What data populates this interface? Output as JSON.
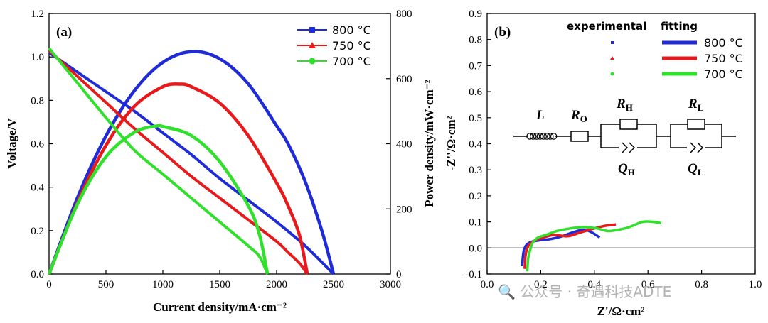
{
  "chart_data": [
    {
      "type": "line",
      "panel_label": "(a)",
      "xlabel": "Current density/mA·cm⁻²",
      "ylabel": "Voltage/V",
      "y2label": "Power density/mW·cm⁻²",
      "xlim": [
        0,
        3000
      ],
      "ylim": [
        0,
        1.2
      ],
      "y2lim": [
        0,
        800
      ],
      "x_ticks": [
        "0",
        "500",
        "1000",
        "1500",
        "2000",
        "2500",
        "3000"
      ],
      "y_ticks": [
        "0.0",
        "0.2",
        "0.4",
        "0.6",
        "0.8",
        "1.0",
        "1.2"
      ],
      "y2_ticks": [
        "0",
        "200",
        "400",
        "600",
        "800"
      ],
      "legend_position": "top-right",
      "legend": [
        "800 °C",
        "750 °C",
        "700 °C"
      ],
      "series": [
        {
          "name": "800 °C",
          "color": "#1f2bd6",
          "marker": "square",
          "voltage": {
            "x": [
              0,
              250,
              500,
              750,
              1000,
              1250,
              1500,
              1750,
              2000,
              2250,
              2500
            ],
            "y": [
              1.02,
              0.93,
              0.84,
              0.75,
              0.65,
              0.55,
              0.44,
              0.34,
              0.24,
              0.13,
              0.0
            ]
          },
          "power": {
            "x": [
              0,
              250,
              500,
              750,
              1000,
              1250,
              1500,
              1750,
              2000,
              2100,
              2250,
              2400,
              2500
            ],
            "y": [
              0,
              235,
              424,
              563,
              650,
              683,
              661,
              584,
              455,
              400,
              285,
              130,
              0
            ]
          }
        },
        {
          "name": "750 °C",
          "color": "#e8191b",
          "marker": "triangle",
          "voltage": {
            "x": [
              0,
              250,
              500,
              750,
              1000,
              1250,
              1500,
              1750,
              2000,
              2100,
              2200,
              2270
            ],
            "y": [
              1.03,
              0.91,
              0.79,
              0.67,
              0.56,
              0.45,
              0.35,
              0.25,
              0.15,
              0.1,
              0.05,
              0.0
            ]
          },
          "power": {
            "x": [
              0,
              250,
              500,
              750,
              1000,
              1150,
              1250,
              1500,
              1750,
              2000,
              2100,
              2200,
              2270
            ],
            "y": [
              0,
              220,
              395,
              515,
              575,
              583,
              575,
              525,
              425,
              280,
              210,
              120,
              0
            ]
          }
        },
        {
          "name": "700 °C",
          "color": "#31e02d",
          "marker": "circle",
          "voltage": {
            "x": [
              0,
              250,
              500,
              750,
              1000,
              1250,
              1500,
              1750,
              1850,
              1920
            ],
            "y": [
              1.04,
              0.88,
              0.72,
              0.57,
              0.46,
              0.35,
              0.24,
              0.13,
              0.08,
              0.0
            ]
          },
          "power": {
            "x": [
              0,
              250,
              500,
              750,
              950,
              1000,
              1250,
              1500,
              1750,
              1850,
              1920
            ],
            "y": [
              0,
              215,
              360,
              435,
              455,
              453,
              425,
              345,
              210,
              120,
              0
            ]
          }
        }
      ]
    },
    {
      "type": "line",
      "panel_label": "(b)",
      "xlabel": "Z'/Ω·cm²",
      "ylabel": "-Z''/Ω·cm²",
      "xlim": [
        0.0,
        1.0
      ],
      "ylim": [
        -0.1,
        0.9
      ],
      "x_ticks": [
        "0.0",
        "0.2",
        "0.4",
        "0.6",
        "0.8",
        "1.0"
      ],
      "y_ticks": [
        "-0.1",
        "0.0",
        "0.1",
        "0.2",
        "0.3",
        "0.4",
        "0.5",
        "0.6",
        "0.7",
        "0.8",
        "0.9"
      ],
      "legend_position": "top-right",
      "legend_headers": [
        "experimental",
        "fitting"
      ],
      "legend": [
        "800 °C",
        "750 °C",
        "700 °C"
      ],
      "circuit_labels": {
        "L": "L",
        "RO": "R",
        "RO_sub": "O",
        "RH": "R",
        "RH_sub": "H",
        "RL": "R",
        "RL_sub": "L",
        "QH": "Q",
        "QH_sub": "H",
        "QL": "Q",
        "QL_sub": "L"
      },
      "series": [
        {
          "name": "800 °C",
          "color": "#1f2bd6",
          "x": [
            0.13,
            0.135,
            0.14,
            0.15,
            0.17,
            0.2,
            0.24,
            0.28,
            0.32,
            0.36,
            0.39,
            0.42
          ],
          "y": [
            -0.07,
            -0.02,
            0.0,
            0.015,
            0.025,
            0.03,
            0.035,
            0.045,
            0.06,
            0.07,
            0.06,
            0.04
          ]
        },
        {
          "name": "750 °C",
          "color": "#e8191b",
          "x": [
            0.14,
            0.143,
            0.15,
            0.16,
            0.18,
            0.21,
            0.25,
            0.3,
            0.35,
            0.4,
            0.44,
            0.48
          ],
          "y": [
            -0.08,
            -0.03,
            0.0,
            0.015,
            0.03,
            0.04,
            0.05,
            0.045,
            0.06,
            0.075,
            0.085,
            0.09
          ]
        },
        {
          "name": "700 °C",
          "color": "#31e02d",
          "x": [
            0.15,
            0.153,
            0.16,
            0.17,
            0.19,
            0.22,
            0.26,
            0.31,
            0.36,
            0.41,
            0.45,
            0.49,
            0.53,
            0.58,
            0.62,
            0.65
          ],
          "y": [
            -0.09,
            -0.04,
            -0.01,
            0.02,
            0.04,
            0.05,
            0.065,
            0.075,
            0.08,
            0.075,
            0.065,
            0.07,
            0.08,
            0.1,
            0.1,
            0.095
          ]
        }
      ]
    }
  ],
  "watermark": "🔍 公众号 · 奇遇科技ADTE"
}
